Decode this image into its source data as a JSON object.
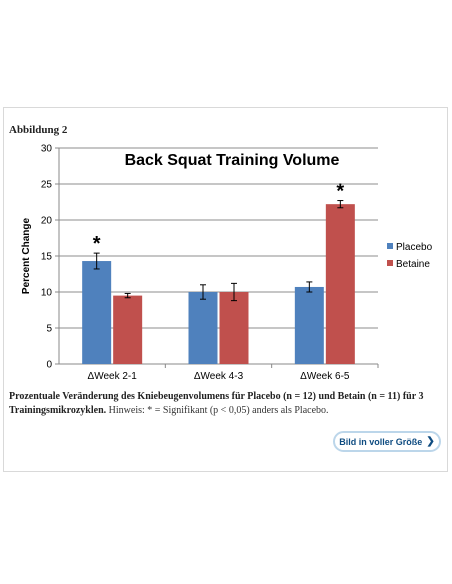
{
  "figure": {
    "label": "Abbildung 2",
    "caption_bold": "Prozentuale Veränderung des Kniebeugenvolumens für Placebo (n = 12) und Betain (n = 11) für 3 Trainingsmikrozyklen.",
    "caption_rest": " Hinweis: * = Signifikant (p < 0,05) anders als Placebo.",
    "full_size_button": "Bild in voller Größe",
    "full_size_icon": "chevron-right-icon"
  },
  "colors": {
    "placebo": "#4F81BD",
    "betaine": "#C0504D",
    "axis": "#888888",
    "grid": "#8c8c8c"
  },
  "chart_data": {
    "type": "bar",
    "title": "Back Squat Training Volume",
    "ylabel": "Percent Change",
    "xlabel": "",
    "ylim": [
      0,
      30
    ],
    "yticks": [
      0,
      5,
      10,
      15,
      20,
      25,
      30
    ],
    "grid": true,
    "legend_position": "right",
    "categories": [
      "ΔWeek 2-1",
      "ΔWeek 4-3",
      "ΔWeek 6-5"
    ],
    "series": [
      {
        "name": "Placebo",
        "values": [
          14.3,
          10.0,
          10.7
        ],
        "errors": [
          1.1,
          1.0,
          0.7
        ]
      },
      {
        "name": "Betaine",
        "values": [
          9.5,
          10.0,
          22.2
        ],
        "errors": [
          0.3,
          1.2,
          0.5
        ]
      }
    ],
    "annotations": [
      {
        "text": "*",
        "category": "ΔWeek 2-1",
        "series": "Placebo"
      },
      {
        "text": "*",
        "category": "ΔWeek 6-5",
        "series": "Betaine"
      }
    ]
  }
}
